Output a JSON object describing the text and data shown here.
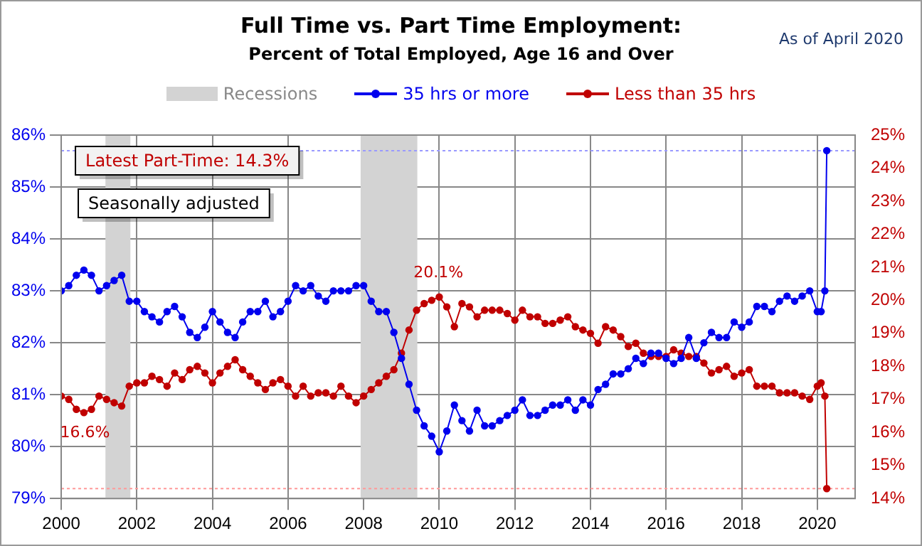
{
  "chart_data": {
    "type": "line",
    "title": "Full Time vs. Part Time Employment:",
    "subtitle": "Percent of Total Employed, Age 16 and Over",
    "annotations": [
      "As of April 2020",
      "Latest Part-Time: 14.3%",
      "Seasonally adjusted",
      "20.1%",
      "16.6%"
    ],
    "x": [
      2000,
      2000.2,
      2000.4,
      2000.6,
      2000.8,
      2001,
      2001.2,
      2001.4,
      2001.6,
      2001.8,
      2002,
      2002.2,
      2002.4,
      2002.6,
      2002.8,
      2003,
      2003.2,
      2003.4,
      2003.6,
      2003.8,
      2004,
      2004.2,
      2004.4,
      2004.6,
      2004.8,
      2005,
      2005.2,
      2005.4,
      2005.6,
      2005.8,
      2006,
      2006.2,
      2006.4,
      2006.6,
      2006.8,
      2007,
      2007.2,
      2007.4,
      2007.6,
      2007.8,
      2008,
      2008.2,
      2008.4,
      2008.6,
      2008.8,
      2009,
      2009.2,
      2009.4,
      2009.6,
      2009.8,
      2010,
      2010.2,
      2010.4,
      2010.6,
      2010.8,
      2011,
      2011.2,
      2011.4,
      2011.6,
      2011.8,
      2012,
      2012.2,
      2012.4,
      2012.6,
      2012.8,
      2013,
      2013.2,
      2013.4,
      2013.6,
      2013.8,
      2014,
      2014.2,
      2014.4,
      2014.6,
      2014.8,
      2015,
      2015.2,
      2015.4,
      2015.6,
      2015.8,
      2016,
      2016.2,
      2016.4,
      2016.6,
      2016.8,
      2017,
      2017.2,
      2017.4,
      2017.6,
      2017.8,
      2018,
      2018.2,
      2018.4,
      2018.6,
      2018.8,
      2019,
      2019.2,
      2019.4,
      2019.6,
      2019.8,
      2020,
      2020.1,
      2020.2,
      2020.25
    ],
    "series": [
      {
        "name": "35 hrs or more",
        "color": "#0000ee",
        "values": [
          83.0,
          83.1,
          83.3,
          83.4,
          83.3,
          83.0,
          83.1,
          83.2,
          83.3,
          82.8,
          82.8,
          82.6,
          82.5,
          82.4,
          82.6,
          82.7,
          82.5,
          82.2,
          82.1,
          82.3,
          82.6,
          82.4,
          82.2,
          82.1,
          82.4,
          82.6,
          82.6,
          82.8,
          82.5,
          82.6,
          82.8,
          83.1,
          83.0,
          83.1,
          82.9,
          82.8,
          83.0,
          83.0,
          83.0,
          83.1,
          83.1,
          82.8,
          82.6,
          82.6,
          82.2,
          81.7,
          81.2,
          80.7,
          80.4,
          80.2,
          79.9,
          80.3,
          80.8,
          80.5,
          80.3,
          80.7,
          80.4,
          80.4,
          80.5,
          80.6,
          80.7,
          80.9,
          80.6,
          80.6,
          80.7,
          80.8,
          80.8,
          80.9,
          80.7,
          80.9,
          80.8,
          81.1,
          81.2,
          81.4,
          81.4,
          81.5,
          81.7,
          81.6,
          81.8,
          81.8,
          81.7,
          81.6,
          81.7,
          82.1,
          81.7,
          82.0,
          82.2,
          82.1,
          82.1,
          82.4,
          82.3,
          82.4,
          82.7,
          82.7,
          82.6,
          82.8,
          82.9,
          82.8,
          82.9,
          83.0,
          82.6,
          82.6,
          83.0,
          85.7
        ]
      },
      {
        "name": "Less than 35 hrs",
        "color": "#c00000",
        "axis": "y2",
        "values": [
          17.1,
          17.0,
          16.7,
          16.6,
          16.7,
          17.1,
          17.0,
          16.9,
          16.8,
          17.4,
          17.5,
          17.5,
          17.7,
          17.6,
          17.4,
          17.8,
          17.6,
          17.9,
          18.0,
          17.8,
          17.5,
          17.8,
          18.0,
          18.2,
          17.9,
          17.7,
          17.5,
          17.3,
          17.5,
          17.6,
          17.4,
          17.1,
          17.4,
          17.1,
          17.2,
          17.2,
          17.1,
          17.4,
          17.1,
          16.9,
          17.1,
          17.3,
          17.5,
          17.7,
          17.9,
          18.4,
          19.1,
          19.7,
          19.9,
          20.0,
          20.1,
          19.8,
          19.2,
          19.9,
          19.8,
          19.5,
          19.7,
          19.7,
          19.7,
          19.6,
          19.4,
          19.7,
          19.5,
          19.5,
          19.3,
          19.3,
          19.4,
          19.5,
          19.2,
          19.1,
          19.0,
          18.7,
          19.2,
          19.1,
          18.9,
          18.6,
          18.7,
          18.4,
          18.3,
          18.3,
          18.3,
          18.5,
          18.4,
          18.3,
          18.3,
          18.1,
          17.8,
          17.9,
          18.0,
          17.7,
          17.8,
          17.9,
          17.4,
          17.4,
          17.4,
          17.2,
          17.2,
          17.2,
          17.1,
          17.0,
          17.4,
          17.5,
          17.1,
          14.3
        ]
      }
    ],
    "bands": [
      {
        "axis": "x",
        "from": 2001.17,
        "to": 2001.83,
        "label": "Recessions",
        "color": "#d3d3d3"
      },
      {
        "axis": "x",
        "from": 2007.92,
        "to": 2009.42,
        "color": "#d3d3d3"
      }
    ],
    "ref_lines": [
      {
        "axis": "y",
        "value": 85.7,
        "color": "#9999ff",
        "line_style": "dotted"
      },
      {
        "axis": "y2",
        "value": 14.3,
        "color": "#ff9999",
        "line_style": "dotted"
      }
    ],
    "xlim": [
      2000,
      2021
    ],
    "xticks": [
      2000,
      2002,
      2004,
      2006,
      2008,
      2010,
      2012,
      2014,
      2016,
      2018,
      2020
    ],
    "ylim": [
      79,
      86
    ],
    "yticks": [
      {
        "value": 79,
        "label": "79%"
      },
      {
        "value": 80,
        "label": "80%"
      },
      {
        "value": 81,
        "label": "81%"
      },
      {
        "value": 82,
        "label": "82%"
      },
      {
        "value": 83,
        "label": "83%"
      },
      {
        "value": 84,
        "label": "84%"
      },
      {
        "value": 85,
        "label": "85%"
      },
      {
        "value": 86,
        "label": "86%"
      }
    ],
    "y2lim": [
      14,
      25
    ],
    "y2ticks": [
      {
        "value": 14,
        "label": "14%"
      },
      {
        "value": 15,
        "label": "15%"
      },
      {
        "value": 16,
        "label": "16%"
      },
      {
        "value": 17,
        "label": "17%"
      },
      {
        "value": 18,
        "label": "18%"
      },
      {
        "value": 19,
        "label": "19%"
      },
      {
        "value": 20,
        "label": "20%"
      },
      {
        "value": 21,
        "label": "21%"
      },
      {
        "value": 22,
        "label": "22%"
      },
      {
        "value": 23,
        "label": "23%"
      },
      {
        "value": 24,
        "label": "24%"
      },
      {
        "value": 25,
        "label": "25%"
      }
    ],
    "grid": true,
    "legend": "top",
    "marker": "circle",
    "line_style": "solid"
  }
}
